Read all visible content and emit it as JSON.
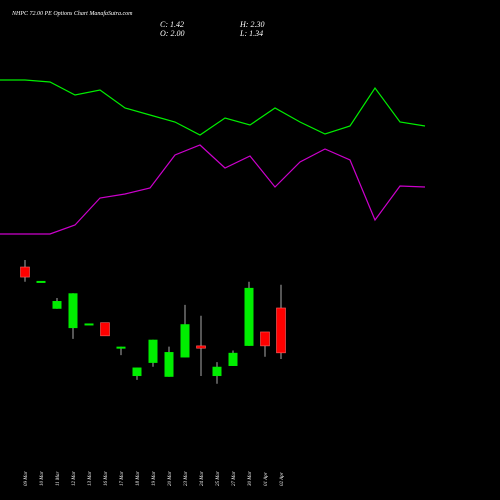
{
  "chart_data": [
    {
      "type": "line",
      "ylim": [
        0,
        100
      ],
      "series": [
        {
          "color": "#00ee00",
          "values": [
            90,
            90,
            89,
            82.5,
            85,
            76,
            72.5,
            69,
            62.5,
            71,
            67.5,
            76,
            69,
            63,
            67,
            86,
            69,
            67
          ]
        },
        {
          "color": "#cc00cc",
          "values": [
            13,
            13,
            13,
            17.5,
            31,
            33,
            36,
            52.5,
            57.5,
            46,
            52,
            36.5,
            49,
            55.5,
            50,
            20,
            37,
            36.5
          ]
        }
      ]
    },
    {
      "type": "candlestick",
      "title": "NHPC 72.00 PE Options Chart ManafaSutra.com",
      "ohlc_texts": [
        "C: 1.42",
        "O: 2.00",
        "H: 2.30",
        "L: 1.34"
      ],
      "categories": [
        "09 Mar",
        "10 Mar",
        "11 Mar",
        "12 Mar",
        "13 Mar",
        "16 Mar",
        "17 Mar",
        "18 Mar",
        "19 Mar",
        "20 Mar",
        "23 Mar",
        "24 Mar",
        "25 Mar",
        "27 Mar",
        "30 Mar",
        "01 Apr",
        "02 Apr"
      ],
      "open": [
        2.53,
        2.35,
        1.99,
        1.74,
        1.79,
        1.81,
        1.5,
        1.12,
        1.29,
        1.11,
        1.36,
        1.51,
        1.12,
        1.25,
        1.51,
        1.69,
        2.0
      ],
      "high": [
        2.62,
        2.35,
        2.13,
        2.19,
        1.8,
        1.81,
        1.5,
        1.23,
        1.59,
        1.5,
        2.04,
        1.9,
        1.3,
        1.45,
        2.34,
        1.69,
        2.3
      ],
      "low": [
        2.34,
        2.35,
        1.99,
        1.6,
        1.79,
        1.64,
        1.39,
        1.07,
        1.24,
        1.11,
        1.36,
        1.12,
        1.02,
        1.25,
        1.51,
        1.37,
        1.34
      ],
      "close": [
        2.4,
        2.35,
        2.09,
        2.19,
        1.8,
        1.64,
        1.5,
        1.23,
        1.59,
        1.43,
        1.79,
        1.48,
        1.24,
        1.42,
        2.26,
        1.51,
        1.42
      ],
      "up_color": "#00ee00",
      "down_color": "#ff0000",
      "wick_color": "#aaaaaa",
      "ylim": [
        0.81,
        2.75
      ]
    }
  ]
}
